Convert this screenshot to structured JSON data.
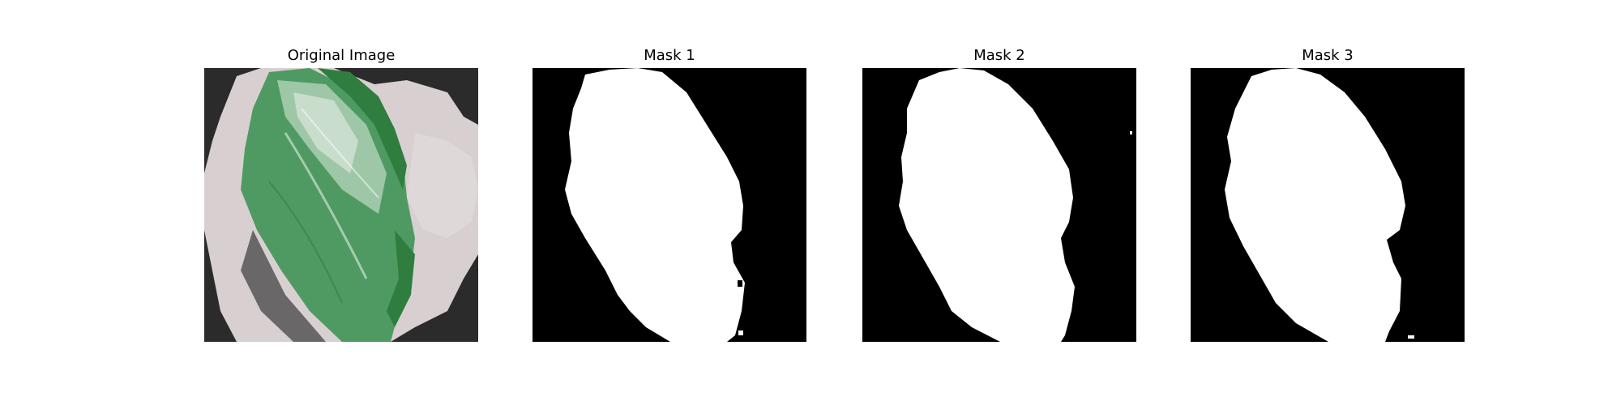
{
  "figure": {
    "panels": [
      {
        "title": "Original Image"
      },
      {
        "title": "Mask 1"
      },
      {
        "title": "Mask 2"
      },
      {
        "title": "Mask 3"
      }
    ]
  },
  "colors": {
    "mask_background": "#000000",
    "mask_foreground": "#ffffff",
    "photo_background": "#2b2b2b",
    "photo_paper": "#d8d0d0",
    "leaf_green": "#4f9a62",
    "leaf_dark_green": "#2f7d3f"
  }
}
